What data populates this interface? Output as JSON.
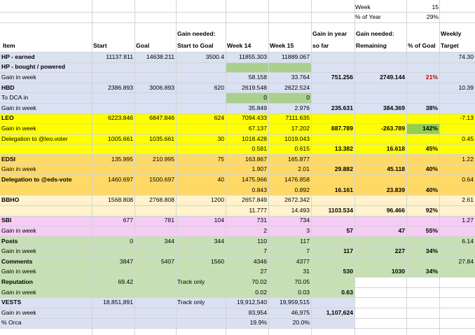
{
  "header": {
    "week_label": "Week",
    "week_value": "15",
    "pct_year_label": "% of Year",
    "pct_year_value": "29%",
    "columns": {
      "item": "Item",
      "start": "Start",
      "goal": "Goal",
      "gain_needed_1": "Gain needed:",
      "gain_needed_2": "Start to Goal",
      "week14": "Week 14",
      "week15": "Week 15",
      "gain_year_1": "Gain in year",
      "gain_year_2": "so far",
      "gain_rem_1": "Gain needed:",
      "gain_rem_2": "Remaining",
      "pct_goal": "% of Goal",
      "weekly_1": "Weekly",
      "weekly_2": "Target"
    }
  },
  "colors": {
    "blue": "#d9e1f2",
    "yellow": "#ffff00",
    "orange": "#ffd966",
    "peach": "#fff2cc",
    "pink": "#f4ccf4",
    "green": "#c6e0b4",
    "greenStrong": "#92d050",
    "greenCell": "#a9d08e",
    "red": "#c00000"
  },
  "rows": [
    {
      "item": "HP - earned",
      "bold": true,
      "start": "11137.811",
      "goal": "14638.211",
      "need": "3500.4",
      "w14": "11855.303",
      "w15": "11889.067",
      "weekly": "74.30"
    },
    {
      "item": "HP - bought / powered",
      "bold": true
    },
    {
      "item": "Gain in week",
      "w14": "58.158",
      "w15": "33.764",
      "gy": "751.256",
      "gr": "2749.144",
      "pct": "21%"
    },
    {
      "item": "HBD",
      "bold": true,
      "start": "2386.893",
      "goal": "3006.893",
      "need": "620",
      "w14": "2619.548",
      "w15": "2622.524",
      "weekly": "10.39"
    },
    {
      "item": "To DCA in",
      "w14": "0",
      "w15": "0"
    },
    {
      "item": "Gain in week",
      "w14": "35.849",
      "w15": "2.976",
      "gy": "235.631",
      "gr": "384.369",
      "pct": "38%"
    },
    {
      "item": "LEO",
      "bold": true,
      "start": "6223.846",
      "goal": "6847.846",
      "need": "624",
      "w14": "7094.433",
      "w15": "7111.635",
      "weekly": "-7.13"
    },
    {
      "item": "Gain in week",
      "w14": "67.137",
      "w15": "17.202",
      "gy": "887.789",
      "gr": "-263.789",
      "pct": "142%"
    },
    {
      "item": "Delegation to @leo.voter",
      "start": "1005.661",
      "goal": "1035.661",
      "need": "30",
      "w14": "1018.428",
      "w15": "1019.043",
      "weekly": "0.45"
    },
    {
      "w14": "0.581",
      "w15": "0.615",
      "gy": "13.382",
      "gr": "16.618",
      "pct": "45%"
    },
    {
      "item": "EDSI",
      "bold": true,
      "start": "135.995",
      "goal": "210.995",
      "need": "75",
      "w14": "163.867",
      "w15": "165.877",
      "weekly": "1.22"
    },
    {
      "item": "Gain in week",
      "w14": "1.907",
      "w15": "2.01",
      "gy": "29.882",
      "gr": "45.118",
      "pct": "40%"
    },
    {
      "item": "Delegation to @eds-vote",
      "bold": true,
      "start": "1460.697",
      "goal": "1500.697",
      "need": "40",
      "w14": "1475.966",
      "w15": "1476.858",
      "weekly": "0.64"
    },
    {
      "w14": "0.843",
      "w15": "0.892",
      "gy": "16.161",
      "gr": "23.839",
      "pct": "40%"
    },
    {
      "item": "BBHO",
      "bold": true,
      "start": "1568.808",
      "goal": "2768.808",
      "need": "1200",
      "w14": "2657.849",
      "w15": "2672.342",
      "weekly": "2.61"
    },
    {
      "w14": "11.777",
      "w15": "14.493",
      "gy": "1103.534",
      "gr": "96.466",
      "pct": "92%"
    },
    {
      "item": "SBI",
      "bold": true,
      "start": "677",
      "goal": "781",
      "need": "104",
      "w14": "731",
      "w15": "734",
      "weekly": "1.27"
    },
    {
      "item": "Gain in week",
      "w14": "2",
      "w15": "3",
      "gy": "57",
      "gr": "47",
      "pct": "55%"
    },
    {
      "item": "Posts",
      "bold": true,
      "start": "0",
      "goal": "344",
      "need": "344",
      "w14": "110",
      "w15": "117",
      "weekly": "6.14"
    },
    {
      "item": "Gain in week",
      "w14": "7",
      "w15": "7",
      "gy": "117",
      "gr": "227",
      "pct": "34%"
    },
    {
      "item": "Comments",
      "bold": true,
      "start": "3847",
      "goal": "5407",
      "need": "1560",
      "w14": "4346",
      "w15": "4377",
      "weekly": "27.84"
    },
    {
      "item": "Gain in week",
      "w14": "27",
      "w15": "31",
      "gy": "530",
      "gr": "1030",
      "pct": "34%"
    },
    {
      "item": "Reputation",
      "bold": true,
      "start": "69.42",
      "need_text": "Track only",
      "w14": "70.02",
      "w15": "70.05"
    },
    {
      "item": "Gain in week",
      "w14": "0.02",
      "w15": "0.03",
      "gy": "0.63"
    },
    {
      "item": "VESTS",
      "bold": true,
      "start": "18,851,891",
      "need_text": "Track only",
      "w14": "19,912,540",
      "w15": "19,959,515"
    },
    {
      "item": "Gain in week",
      "w14": "83,954",
      "w15": "46,975",
      "gy": "1,107,624"
    },
    {
      "item": "% Orca",
      "w14": "19.9%",
      "w15": "20.0%"
    }
  ]
}
